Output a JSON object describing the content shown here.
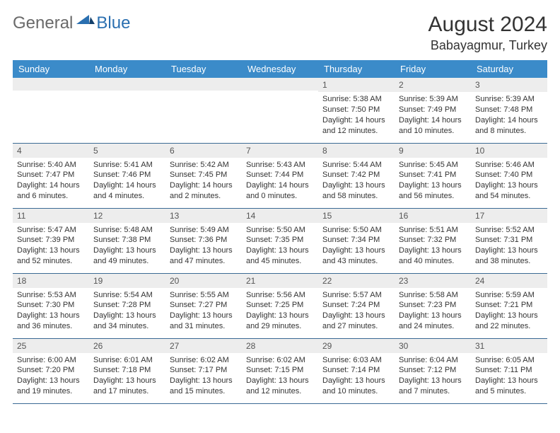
{
  "brand": {
    "part1": "General",
    "part2": "Blue"
  },
  "title": "August 2024",
  "location": "Babayagmur, Turkey",
  "colors": {
    "header_bg": "#3b8bc9",
    "header_text": "#ffffff",
    "daynum_bg": "#ededed",
    "border": "#3b6a94",
    "logo_gray": "#6a6a6a",
    "logo_blue": "#2a6fb0"
  },
  "weekdays": [
    "Sunday",
    "Monday",
    "Tuesday",
    "Wednesday",
    "Thursday",
    "Friday",
    "Saturday"
  ],
  "weeks": [
    [
      {
        "n": "",
        "sr": "",
        "ss": "",
        "dl": ""
      },
      {
        "n": "",
        "sr": "",
        "ss": "",
        "dl": ""
      },
      {
        "n": "",
        "sr": "",
        "ss": "",
        "dl": ""
      },
      {
        "n": "",
        "sr": "",
        "ss": "",
        "dl": ""
      },
      {
        "n": "1",
        "sr": "Sunrise: 5:38 AM",
        "ss": "Sunset: 7:50 PM",
        "dl": "Daylight: 14 hours and 12 minutes."
      },
      {
        "n": "2",
        "sr": "Sunrise: 5:39 AM",
        "ss": "Sunset: 7:49 PM",
        "dl": "Daylight: 14 hours and 10 minutes."
      },
      {
        "n": "3",
        "sr": "Sunrise: 5:39 AM",
        "ss": "Sunset: 7:48 PM",
        "dl": "Daylight: 14 hours and 8 minutes."
      }
    ],
    [
      {
        "n": "4",
        "sr": "Sunrise: 5:40 AM",
        "ss": "Sunset: 7:47 PM",
        "dl": "Daylight: 14 hours and 6 minutes."
      },
      {
        "n": "5",
        "sr": "Sunrise: 5:41 AM",
        "ss": "Sunset: 7:46 PM",
        "dl": "Daylight: 14 hours and 4 minutes."
      },
      {
        "n": "6",
        "sr": "Sunrise: 5:42 AM",
        "ss": "Sunset: 7:45 PM",
        "dl": "Daylight: 14 hours and 2 minutes."
      },
      {
        "n": "7",
        "sr": "Sunrise: 5:43 AM",
        "ss": "Sunset: 7:44 PM",
        "dl": "Daylight: 14 hours and 0 minutes."
      },
      {
        "n": "8",
        "sr": "Sunrise: 5:44 AM",
        "ss": "Sunset: 7:42 PM",
        "dl": "Daylight: 13 hours and 58 minutes."
      },
      {
        "n": "9",
        "sr": "Sunrise: 5:45 AM",
        "ss": "Sunset: 7:41 PM",
        "dl": "Daylight: 13 hours and 56 minutes."
      },
      {
        "n": "10",
        "sr": "Sunrise: 5:46 AM",
        "ss": "Sunset: 7:40 PM",
        "dl": "Daylight: 13 hours and 54 minutes."
      }
    ],
    [
      {
        "n": "11",
        "sr": "Sunrise: 5:47 AM",
        "ss": "Sunset: 7:39 PM",
        "dl": "Daylight: 13 hours and 52 minutes."
      },
      {
        "n": "12",
        "sr": "Sunrise: 5:48 AM",
        "ss": "Sunset: 7:38 PM",
        "dl": "Daylight: 13 hours and 49 minutes."
      },
      {
        "n": "13",
        "sr": "Sunrise: 5:49 AM",
        "ss": "Sunset: 7:36 PM",
        "dl": "Daylight: 13 hours and 47 minutes."
      },
      {
        "n": "14",
        "sr": "Sunrise: 5:50 AM",
        "ss": "Sunset: 7:35 PM",
        "dl": "Daylight: 13 hours and 45 minutes."
      },
      {
        "n": "15",
        "sr": "Sunrise: 5:50 AM",
        "ss": "Sunset: 7:34 PM",
        "dl": "Daylight: 13 hours and 43 minutes."
      },
      {
        "n": "16",
        "sr": "Sunrise: 5:51 AM",
        "ss": "Sunset: 7:32 PM",
        "dl": "Daylight: 13 hours and 40 minutes."
      },
      {
        "n": "17",
        "sr": "Sunrise: 5:52 AM",
        "ss": "Sunset: 7:31 PM",
        "dl": "Daylight: 13 hours and 38 minutes."
      }
    ],
    [
      {
        "n": "18",
        "sr": "Sunrise: 5:53 AM",
        "ss": "Sunset: 7:30 PM",
        "dl": "Daylight: 13 hours and 36 minutes."
      },
      {
        "n": "19",
        "sr": "Sunrise: 5:54 AM",
        "ss": "Sunset: 7:28 PM",
        "dl": "Daylight: 13 hours and 34 minutes."
      },
      {
        "n": "20",
        "sr": "Sunrise: 5:55 AM",
        "ss": "Sunset: 7:27 PM",
        "dl": "Daylight: 13 hours and 31 minutes."
      },
      {
        "n": "21",
        "sr": "Sunrise: 5:56 AM",
        "ss": "Sunset: 7:25 PM",
        "dl": "Daylight: 13 hours and 29 minutes."
      },
      {
        "n": "22",
        "sr": "Sunrise: 5:57 AM",
        "ss": "Sunset: 7:24 PM",
        "dl": "Daylight: 13 hours and 27 minutes."
      },
      {
        "n": "23",
        "sr": "Sunrise: 5:58 AM",
        "ss": "Sunset: 7:23 PM",
        "dl": "Daylight: 13 hours and 24 minutes."
      },
      {
        "n": "24",
        "sr": "Sunrise: 5:59 AM",
        "ss": "Sunset: 7:21 PM",
        "dl": "Daylight: 13 hours and 22 minutes."
      }
    ],
    [
      {
        "n": "25",
        "sr": "Sunrise: 6:00 AM",
        "ss": "Sunset: 7:20 PM",
        "dl": "Daylight: 13 hours and 19 minutes."
      },
      {
        "n": "26",
        "sr": "Sunrise: 6:01 AM",
        "ss": "Sunset: 7:18 PM",
        "dl": "Daylight: 13 hours and 17 minutes."
      },
      {
        "n": "27",
        "sr": "Sunrise: 6:02 AM",
        "ss": "Sunset: 7:17 PM",
        "dl": "Daylight: 13 hours and 15 minutes."
      },
      {
        "n": "28",
        "sr": "Sunrise: 6:02 AM",
        "ss": "Sunset: 7:15 PM",
        "dl": "Daylight: 13 hours and 12 minutes."
      },
      {
        "n": "29",
        "sr": "Sunrise: 6:03 AM",
        "ss": "Sunset: 7:14 PM",
        "dl": "Daylight: 13 hours and 10 minutes."
      },
      {
        "n": "30",
        "sr": "Sunrise: 6:04 AM",
        "ss": "Sunset: 7:12 PM",
        "dl": "Daylight: 13 hours and 7 minutes."
      },
      {
        "n": "31",
        "sr": "Sunrise: 6:05 AM",
        "ss": "Sunset: 7:11 PM",
        "dl": "Daylight: 13 hours and 5 minutes."
      }
    ]
  ]
}
